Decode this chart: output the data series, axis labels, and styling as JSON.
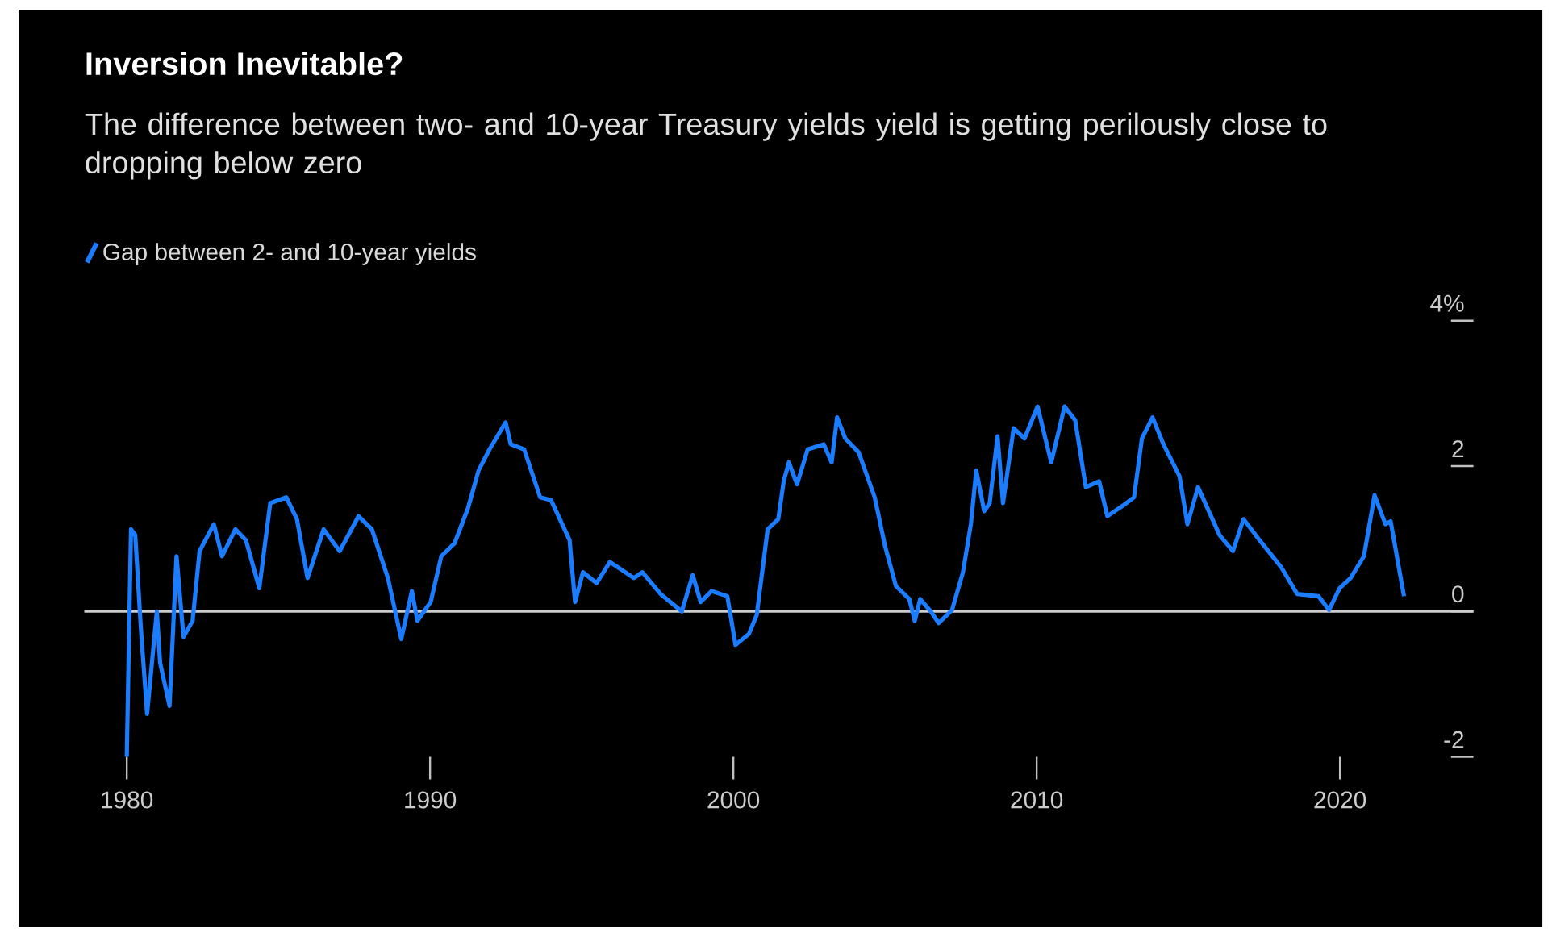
{
  "chart_data": {
    "type": "line",
    "title": "Inversion Inevitable?",
    "subtitle": "The difference between two- and 10-year Treasury yields yield is getting perilously close to dropping below zero",
    "series": [
      {
        "name": "Gap between 2- and 10-year yields",
        "color": "#1a7cff",
        "x": [
          1980.0,
          1980.14,
          1980.28,
          1980.46,
          1980.67,
          1980.99,
          1981.1,
          1981.41,
          1981.64,
          1981.87,
          1982.17,
          1982.4,
          1982.87,
          1983.14,
          1983.58,
          1983.93,
          1984.37,
          1984.73,
          1985.26,
          1985.61,
          1985.96,
          1986.49,
          1987.02,
          1987.64,
          1988.08,
          1988.61,
          1989.05,
          1989.4,
          1989.58,
          1990.02,
          1990.37,
          1990.81,
          1991.25,
          1991.6,
          1991.96,
          1992.49,
          1992.66,
          1993.1,
          1993.63,
          1993.99,
          1994.6,
          1994.78,
          1995.04,
          1995.49,
          1995.93,
          1996.72,
          1997.0,
          1997.6,
          1998.3,
          1998.66,
          1998.92,
          1999.28,
          1999.8,
          2000.07,
          2000.51,
          2000.77,
          2001.13,
          2001.48,
          2001.66,
          2001.83,
          2002.1,
          2002.45,
          2002.98,
          2003.24,
          2003.42,
          2003.69,
          2004.13,
          2004.66,
          2005.0,
          2005.36,
          2005.8,
          2005.98,
          2006.16,
          2006.51,
          2006.77,
          2007.21,
          2007.57,
          2007.83,
          2008.01,
          2008.27,
          2008.45,
          2008.71,
          2008.89,
          2009.24,
          2009.6,
          2010.03,
          2010.48,
          2010.92,
          2011.27,
          2011.62,
          2012.06,
          2012.33,
          2012.86,
          2013.21,
          2013.47,
          2013.82,
          2014.18,
          2014.71,
          2014.97,
          2015.32,
          2016.03,
          2016.47,
          2016.82,
          2017.35,
          2018.06,
          2018.59,
          2019.29,
          2019.64,
          2019.99,
          2020.35,
          2020.79,
          2021.14,
          2021.5,
          2021.67,
          2022.11
        ],
        "values": [
          -2.0,
          1.13,
          1.05,
          -0.2,
          -1.41,
          0.0,
          -0.71,
          -1.3,
          0.76,
          -0.35,
          -0.13,
          0.83,
          1.2,
          0.76,
          1.13,
          0.98,
          0.32,
          1.49,
          1.57,
          1.27,
          0.46,
          1.13,
          0.83,
          1.31,
          1.13,
          0.46,
          -0.38,
          0.28,
          -0.13,
          0.13,
          0.76,
          0.94,
          1.42,
          1.94,
          2.23,
          2.6,
          2.3,
          2.23,
          1.57,
          1.53,
          0.98,
          0.13,
          0.54,
          0.39,
          0.68,
          0.46,
          0.54,
          0.24,
          0.0,
          0.5,
          0.13,
          0.28,
          0.21,
          -0.46,
          -0.31,
          -0.05,
          1.13,
          1.27,
          1.79,
          2.05,
          1.75,
          2.23,
          2.3,
          2.05,
          2.67,
          2.38,
          2.19,
          1.57,
          0.9,
          0.35,
          0.17,
          -0.13,
          0.17,
          0.0,
          -0.16,
          0.02,
          0.54,
          1.2,
          1.94,
          1.38,
          1.49,
          2.41,
          1.49,
          2.52,
          2.38,
          2.82,
          2.05,
          2.82,
          2.63,
          1.71,
          1.79,
          1.31,
          1.46,
          1.57,
          2.38,
          2.67,
          2.3,
          1.86,
          1.2,
          1.71,
          1.05,
          0.83,
          1.27,
          0.98,
          0.61,
          0.24,
          0.21,
          0.02,
          0.32,
          0.46,
          0.76,
          1.6,
          1.2,
          1.24,
          0.21
        ]
      }
    ],
    "xlim": [
      1978.6,
      2024.4
    ],
    "xticks": [
      1980,
      1990,
      2000,
      2010,
      2020
    ],
    "ylim": [
      -2,
      4
    ],
    "yticks": [
      -2,
      0,
      2,
      {
        "value": 4,
        "label": "4%"
      }
    ],
    "ref_lines": [
      {
        "axis": "y",
        "value": 0,
        "color": "#cccccc"
      }
    ],
    "legend": "top left",
    "marker": "none",
    "line_style": "solid"
  }
}
